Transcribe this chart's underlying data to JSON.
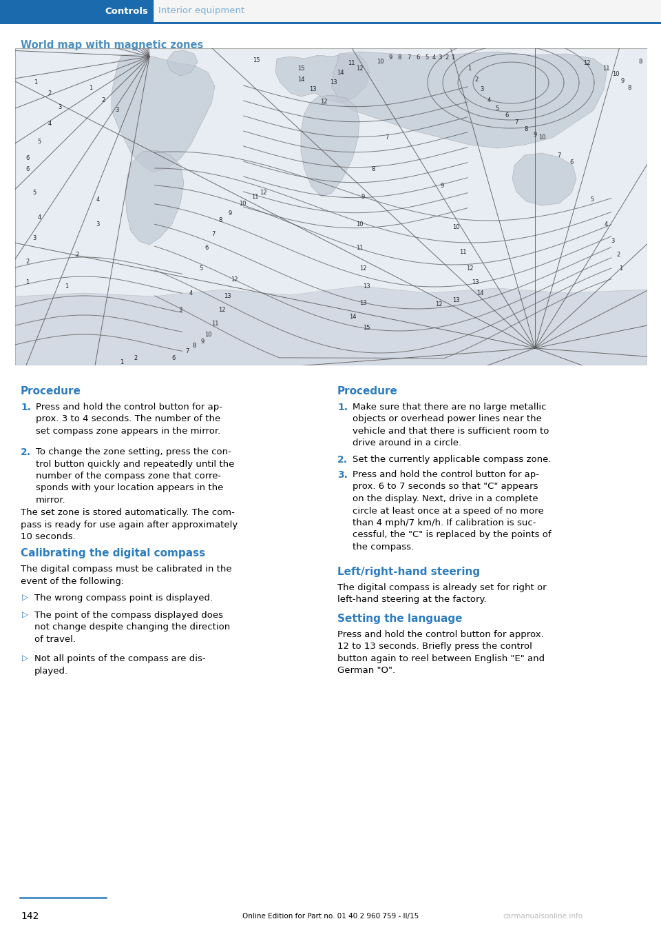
{
  "page_bg": "#ffffff",
  "header_bar_color": "#1a6aad",
  "header_text_color": "#ffffff",
  "header_sub_color": "#7bafd4",
  "header_left_text": "Controls",
  "header_right_text": "Interior equipment",
  "divider_color": "#1a6aad",
  "map_title": "World map with magnetic zones",
  "map_title_color": "#4a8fc0",
  "map_bg": "#e8edf3",
  "map_border_color": "#aaaaaa",
  "section_title_color": "#2b7cc0",
  "body_text_color": "#000000",
  "number_color": "#2b7cc0",
  "bullet_color": "#2b7cc0",
  "footer_line_color": "#2b7cc0",
  "footer_page": "142",
  "footer_text": "Online Edition for Part no. 01 40 2 960 759 - II/15",
  "footer_watermark": "carmanualsonline.info",
  "line_color": "#555555",
  "continent_color": "#c0c8d4",
  "continent_edge": "#999999"
}
